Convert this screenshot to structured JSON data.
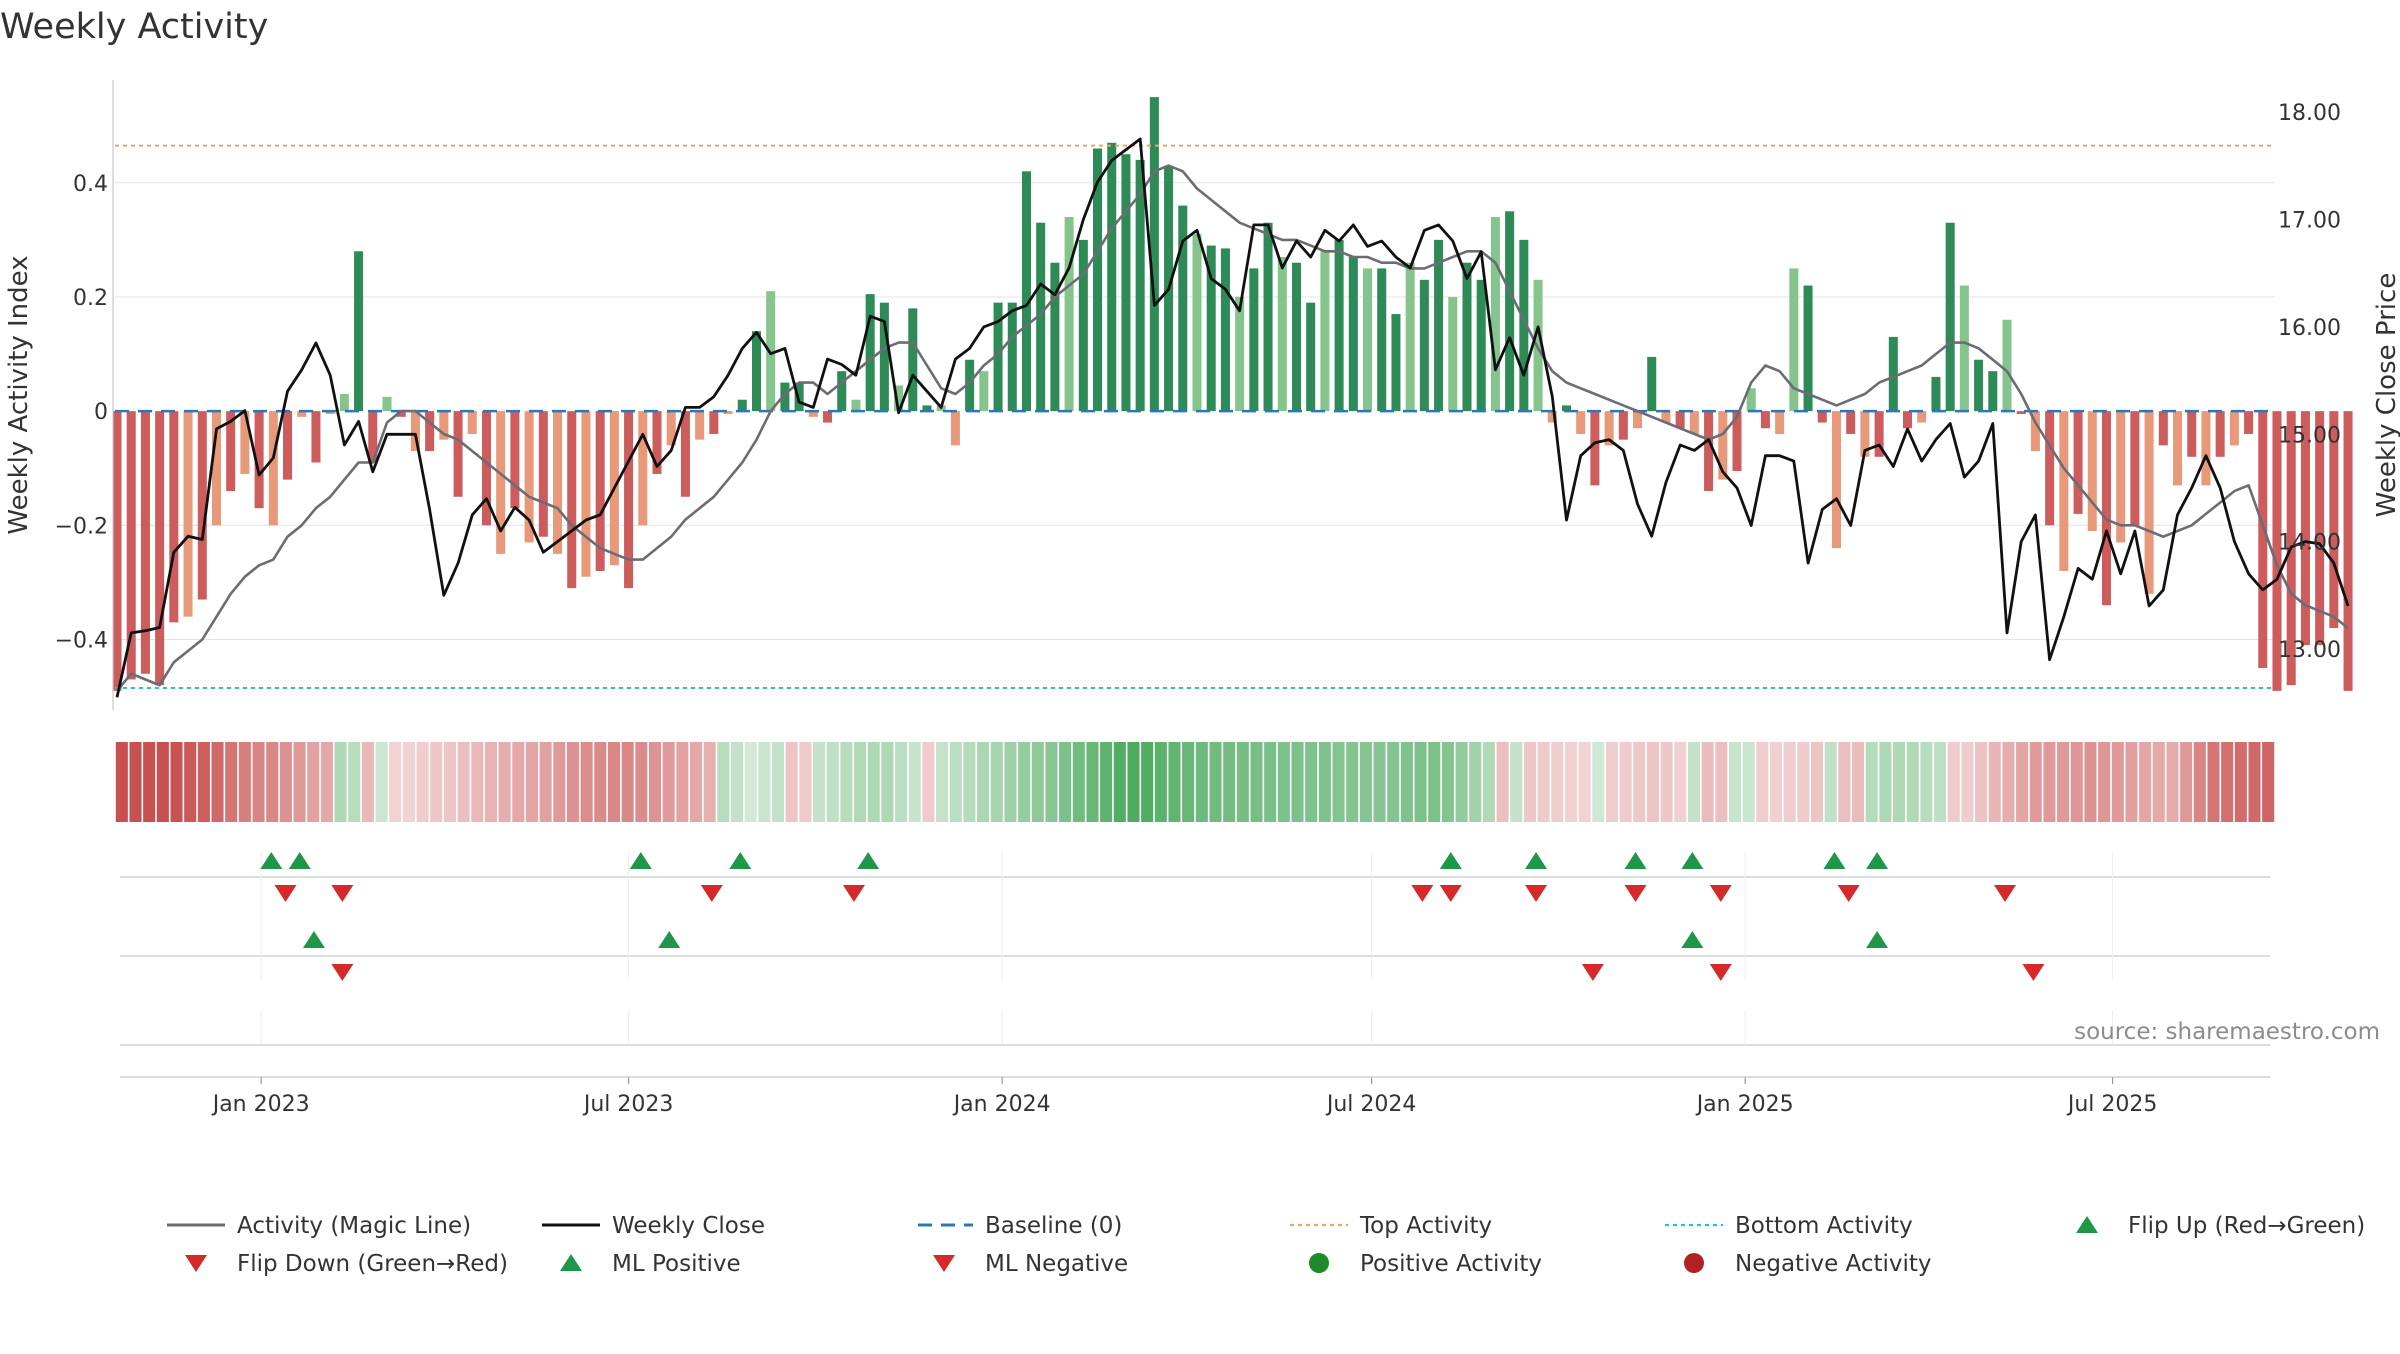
{
  "chart_data": {
    "type": "bar",
    "title": "Weekly Activity",
    "ylabel_left": "Weekly Activity Index",
    "ylabel_right": "Weekly Close Price",
    "ylim_left": [
      -0.52,
      0.58
    ],
    "ylim_right": [
      12.45,
      18.3
    ],
    "yticks_left": [
      0.4,
      0.2,
      0,
      -0.2,
      -0.4
    ],
    "yticks_left_labels": [
      "0.4",
      "0.2",
      "0",
      "−0.2",
      "−0.4"
    ],
    "yticks_right": [
      18.0,
      17.0,
      16.0,
      15.0,
      14.0,
      13.0
    ],
    "yticks_right_labels": [
      "18.00",
      "17.00",
      "16.00",
      "15.00",
      "14.00",
      "13.00"
    ],
    "x_start": "2022-10-21",
    "x_end": "2025-09-19",
    "xtick_labels": [
      "Jan 2023",
      "Jul 2023",
      "Jan 2024",
      "Jul 2024",
      "Jan 2025",
      "Jul 2025"
    ],
    "top_activity": 0.465,
    "bottom_activity": -0.485,
    "baseline": 0,
    "activity_weekly": [
      -0.49,
      -0.47,
      -0.46,
      -0.48,
      -0.37,
      -0.36,
      -0.33,
      -0.2,
      -0.14,
      -0.11,
      -0.17,
      -0.2,
      -0.12,
      -0.01,
      -0.09,
      -0.005,
      0.03,
      0.28,
      -0.09,
      0.025,
      -0.01,
      -0.07,
      -0.07,
      -0.05,
      -0.15,
      -0.04,
      -0.2,
      -0.25,
      -0.17,
      -0.23,
      -0.22,
      -0.25,
      -0.31,
      -0.29,
      -0.28,
      -0.27,
      -0.31,
      -0.2,
      -0.11,
      -0.06,
      -0.15,
      -0.05,
      -0.04,
      -0.005,
      0.02,
      0.14,
      0.21,
      0.05,
      0.05,
      -0.01,
      -0.02,
      0.07,
      0.02,
      0.205,
      0.19,
      0.045,
      0.18,
      0.01,
      0.01,
      -0.06,
      0.09,
      0.07,
      0.19,
      0.19,
      0.42,
      0.33,
      0.26,
      0.34,
      0.3,
      0.46,
      0.47,
      0.45,
      0.44,
      0.55,
      0.43,
      0.36,
      0.31,
      0.29,
      0.285,
      0.2,
      0.25,
      0.33,
      0.27,
      0.26,
      0.19,
      0.28,
      0.3,
      0.27,
      0.25,
      0.25,
      0.17,
      0.26,
      0.23,
      0.3,
      0.2,
      0.26,
      0.23,
      0.34,
      0.35,
      0.3,
      0.23,
      -0.02,
      0.01,
      -0.04,
      -0.13,
      -0.06,
      -0.05,
      -0.03,
      0.095,
      -0.02,
      -0.03,
      -0.04,
      -0.14,
      -0.12,
      -0.105,
      0.04,
      -0.03,
      -0.04,
      0.25,
      0.22,
      -0.02,
      -0.24,
      -0.04,
      -0.08,
      -0.08,
      0.13,
      -0.03,
      -0.02,
      0.06,
      0.33,
      0.22,
      0.09,
      0.07,
      0.16,
      -0.005,
      -0.07,
      -0.2,
      -0.28,
      -0.18,
      -0.21,
      -0.34,
      -0.23,
      -0.2,
      -0.32,
      -0.06,
      -0.13,
      -0.08,
      -0.13,
      -0.08,
      -0.06,
      -0.04,
      -0.45,
      -0.49,
      -0.48,
      -0.41,
      -0.41,
      -0.38,
      -0.49
    ],
    "weekly_close": [
      12.55,
      13.15,
      13.17,
      13.2,
      13.9,
      14.05,
      14.02,
      15.05,
      15.12,
      15.22,
      14.62,
      14.78,
      15.4,
      15.6,
      15.85,
      15.55,
      14.9,
      15.12,
      14.65,
      15.0,
      15.0,
      15.0,
      14.3,
      13.5,
      13.8,
      14.25,
      14.4,
      14.1,
      14.32,
      14.2,
      13.9,
      14.0,
      14.1,
      14.2,
      14.25,
      14.5,
      14.75,
      15.0,
      14.7,
      14.85,
      15.25,
      15.25,
      15.35,
      15.55,
      15.8,
      15.95,
      15.75,
      15.8,
      15.3,
      15.25,
      15.7,
      15.65,
      15.55,
      16.1,
      16.05,
      15.2,
      15.55,
      15.4,
      15.25,
      15.7,
      15.8,
      16.0,
      16.05,
      16.15,
      16.2,
      16.4,
      16.3,
      16.55,
      17.0,
      17.35,
      17.55,
      17.65,
      17.75,
      16.2,
      16.35,
      16.8,
      16.9,
      16.45,
      16.35,
      16.15,
      16.95,
      16.95,
      16.55,
      16.8,
      16.65,
      16.9,
      16.8,
      16.95,
      16.75,
      16.8,
      16.65,
      16.55,
      16.9,
      16.95,
      16.8,
      16.45,
      16.7,
      15.6,
      15.9,
      15.55,
      16.0,
      15.35,
      14.2,
      14.8,
      14.92,
      14.95,
      14.85,
      14.35,
      14.05,
      14.55,
      14.9,
      14.85,
      14.95,
      14.65,
      14.5,
      14.15,
      14.8,
      14.8,
      14.75,
      13.8,
      14.3,
      14.4,
      14.15,
      14.85,
      14.9,
      14.7,
      15.05,
      14.75,
      14.95,
      15.1,
      14.6,
      14.75,
      15.1,
      13.15,
      14.0,
      14.25,
      12.9,
      13.3,
      13.75,
      13.65,
      14.1,
      13.7,
      14.1,
      13.4,
      13.55,
      14.25,
      14.5,
      14.8,
      14.5,
      14.0,
      13.7,
      13.55,
      13.65,
      13.95,
      14.0,
      13.98,
      13.8,
      13.4
    ],
    "magic_line_weekly": [
      -0.49,
      -0.46,
      -0.47,
      -0.48,
      -0.44,
      -0.42,
      -0.4,
      -0.36,
      -0.32,
      -0.29,
      -0.27,
      -0.26,
      -0.22,
      -0.2,
      -0.17,
      -0.15,
      -0.12,
      -0.09,
      -0.09,
      -0.02,
      0.0,
      0.0,
      -0.02,
      -0.04,
      -0.05,
      -0.07,
      -0.09,
      -0.11,
      -0.13,
      -0.15,
      -0.16,
      -0.17,
      -0.2,
      -0.22,
      -0.24,
      -0.25,
      -0.26,
      -0.26,
      -0.24,
      -0.22,
      -0.19,
      -0.17,
      -0.15,
      -0.12,
      -0.09,
      -0.05,
      -0.0,
      0.03,
      0.05,
      0.05,
      0.03,
      0.05,
      0.07,
      0.09,
      0.11,
      0.12,
      0.12,
      0.08,
      0.04,
      0.03,
      0.05,
      0.08,
      0.1,
      0.13,
      0.15,
      0.17,
      0.2,
      0.22,
      0.24,
      0.28,
      0.32,
      0.35,
      0.38,
      0.42,
      0.43,
      0.42,
      0.39,
      0.37,
      0.35,
      0.33,
      0.32,
      0.31,
      0.3,
      0.3,
      0.29,
      0.28,
      0.28,
      0.27,
      0.27,
      0.26,
      0.26,
      0.25,
      0.25,
      0.26,
      0.27,
      0.28,
      0.28,
      0.26,
      0.21,
      0.16,
      0.11,
      0.07,
      0.05,
      0.04,
      0.03,
      0.02,
      0.01,
      0.0,
      -0.01,
      -0.02,
      -0.03,
      -0.04,
      -0.05,
      -0.04,
      -0.01,
      0.05,
      0.08,
      0.07,
      0.04,
      0.03,
      0.02,
      0.01,
      0.02,
      0.03,
      0.05,
      0.06,
      0.07,
      0.08,
      0.1,
      0.12,
      0.12,
      0.11,
      0.09,
      0.07,
      0.03,
      -0.02,
      -0.06,
      -0.1,
      -0.13,
      -0.16,
      -0.19,
      -0.2,
      -0.2,
      -0.21,
      -0.22,
      -0.21,
      -0.2,
      -0.18,
      -0.16,
      -0.14,
      -0.13,
      -0.2,
      -0.27,
      -0.32,
      -0.34,
      -0.35,
      -0.36,
      -0.38
    ],
    "flip_up_dates": [
      "2023-01-06",
      "2023-01-20",
      "2023-07-07",
      "2023-08-25",
      "2023-10-27",
      "2024-08-09",
      "2024-09-20",
      "2024-11-08",
      "2024-12-06",
      "2025-02-14",
      "2025-03-07"
    ],
    "flip_down_dates": [
      "2023-01-13",
      "2023-02-10",
      "2023-08-11",
      "2023-10-20",
      "2024-07-26",
      "2024-08-09",
      "2024-09-20",
      "2024-11-08",
      "2024-12-20",
      "2025-02-21",
      "2025-05-09"
    ],
    "ml_positive_dates": [
      "2023-01-27",
      "2023-07-21",
      "2024-12-06",
      "2025-03-07"
    ],
    "ml_negative_dates": [
      "2023-02-10",
      "2024-10-18",
      "2024-12-20",
      "2025-05-23"
    ],
    "source_text": "source: sharemaestro.com",
    "legend": [
      {
        "label": "Activity (Magic Line)",
        "kind": "line",
        "color": "#6c6c74"
      },
      {
        "label": "Weekly Close",
        "kind": "line",
        "color": "#111111"
      },
      {
        "label": "Baseline (0)",
        "kind": "dash",
        "color": "#2a78b9"
      },
      {
        "label": "Top Activity",
        "kind": "dot",
        "color": "#f0a360"
      },
      {
        "label": "Bottom Activity",
        "kind": "dot",
        "color": "#22c4d0"
      },
      {
        "label": "Flip Up (Red→Green)",
        "kind": "tri-up",
        "color": "#1e9848"
      },
      {
        "label": "Flip Down (Green→Red)",
        "kind": "tri-down",
        "color": "#d62a2a"
      },
      {
        "label": "ML Positive",
        "kind": "tri-up",
        "color": "#1e9848"
      },
      {
        "label": "ML Negative",
        "kind": "tri-down",
        "color": "#d62a2a"
      },
      {
        "label": "Positive Activity",
        "kind": "circle",
        "color": "#1e8a2a"
      },
      {
        "label": "Negative Activity",
        "kind": "circle",
        "color": "#b22222"
      }
    ],
    "colors": {
      "pos_strong": "#2e8b57",
      "pos_light": "#85c48c",
      "neg_strong": "#cd5c5c",
      "neg_light": "#e8997a",
      "heat_green": "#4aa85c",
      "heat_red": "#c85050",
      "grid": "#e3e3e3",
      "axis": "#c8c8c8",
      "text": "#333333",
      "source": "#8c8c8c"
    }
  }
}
